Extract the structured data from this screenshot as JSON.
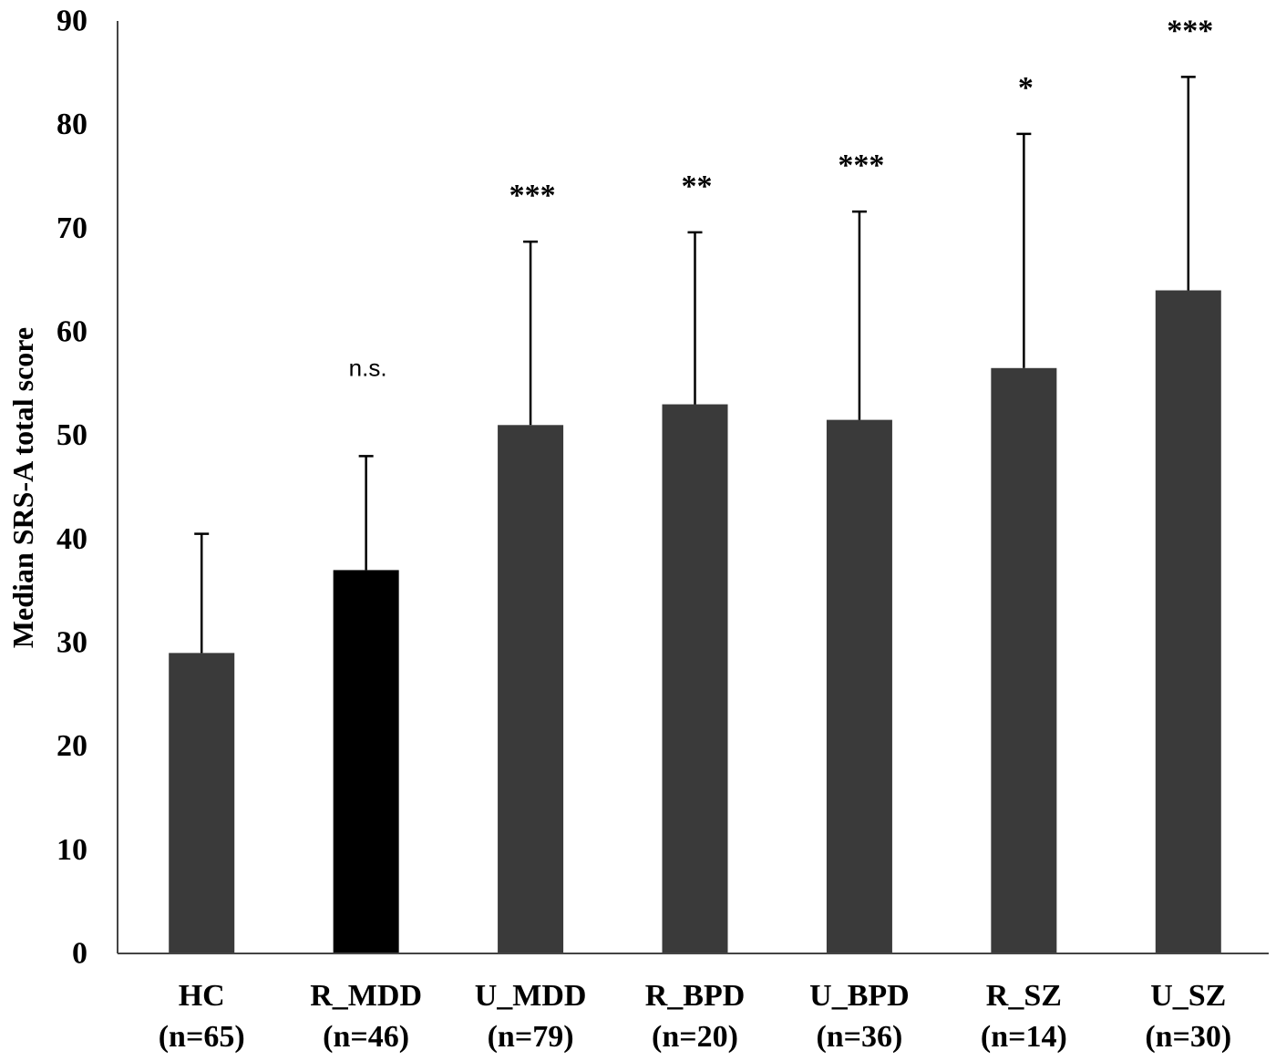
{
  "chart_data": {
    "type": "bar",
    "ylabel": "Median SRS-A total score",
    "xlabel": "",
    "ylim": [
      0,
      90
    ],
    "yticks": [
      0,
      10,
      20,
      30,
      40,
      50,
      60,
      70,
      80,
      90
    ],
    "grid": false,
    "categories": [
      {
        "name": "HC",
        "n": "(n=65)"
      },
      {
        "name": "R_MDD",
        "n": "(n=46)"
      },
      {
        "name": "U_MDD",
        "n": "(n=79)"
      },
      {
        "name": "R_BPD",
        "n": "(n=20)"
      },
      {
        "name": "U_BPD",
        "n": "(n=36)"
      },
      {
        "name": "R_SZ",
        "n": "(n=14)"
      },
      {
        "name": "U_SZ",
        "n": "(n=30)"
      }
    ],
    "values": [
      29,
      37,
      51,
      53,
      51.5,
      56.5,
      64
    ],
    "error_upper": [
      40.5,
      48,
      68.7,
      69.6,
      71.6,
      79.1,
      84.6
    ],
    "significance": [
      "",
      "n.s.",
      "***",
      "**",
      "***",
      "*",
      "***"
    ],
    "bar_colors": [
      "#3a3a3a",
      "#000000",
      "#3a3a3a",
      "#3a3a3a",
      "#3a3a3a",
      "#3a3a3a",
      "#3a3a3a"
    ]
  }
}
